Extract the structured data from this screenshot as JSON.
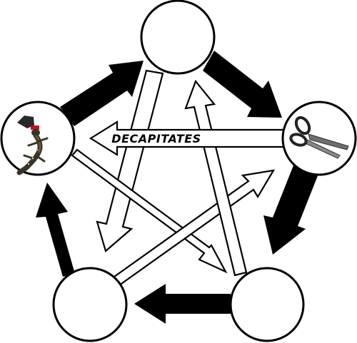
{
  "diagram": {
    "nodes": [
      {
        "id": "top",
        "label": "",
        "icon": ""
      },
      {
        "id": "right",
        "label": "",
        "icon": "scissors-icon"
      },
      {
        "id": "bottom-right",
        "label": "",
        "icon": ""
      },
      {
        "id": "bottom-left",
        "label": "",
        "icon": ""
      },
      {
        "id": "left",
        "label": "",
        "icon": "lizard-icon"
      }
    ],
    "edges": [
      {
        "from": "right",
        "to": "left",
        "label": "DECAPITATES"
      }
    ]
  }
}
